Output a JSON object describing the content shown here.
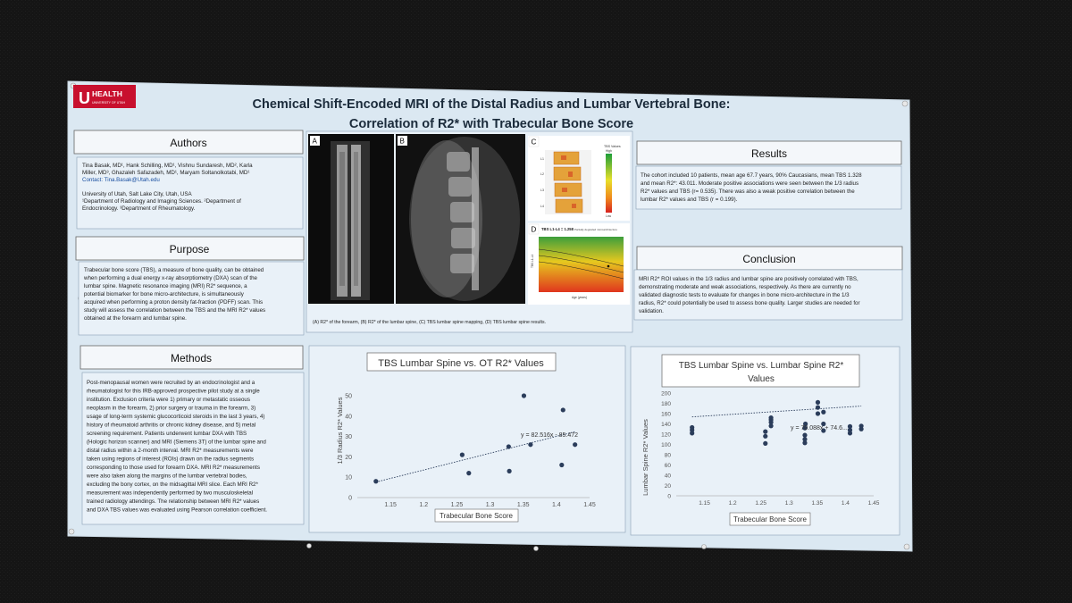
{
  "poster": {
    "logo": {
      "mark": "U",
      "word": "HEALTH",
      "sub": "UNIVERSITY OF UTAH"
    },
    "title_line1": "Chemical Shift-Encoded MRI of the Distal Radius and Lumbar Vertebral Bone:",
    "title_line2": "Correlation of R2* with Trabecular Bone Score",
    "colors": {
      "poster_bg": "#dde9f3",
      "heading_bg": "#f4f7fa",
      "box_bg": "#e9f1f8",
      "logo_red": "#c8102e",
      "dot": "#2b3d5b"
    }
  },
  "authors": {
    "heading": "Authors",
    "lines": [
      "Tina Basak, MD¹, Hank Schilling, MD¹, Vishnu Sundaresh, MD², Karla",
      "Miller, MD³, Ghazaleh Safazadeh, MD¹, Maryam Soltanolkotabi, MD¹",
      "Contact: Tina.Basak@Utah.edu",
      "",
      "University of Utah, Salt Lake City, Utah, USA",
      "¹Department of Radiology and Imaging Sciences. ²Department of",
      "Endocrinology. ³Department of Rheumatology."
    ]
  },
  "purpose": {
    "heading": "Purpose",
    "lines": [
      "Trabecular bone score (TBS), a measure of bone quality, can be obtained",
      "when performing a dual energy x-ray absorptiometry (DXA) scan of the",
      "lumbar spine. Magnetic resonance imaging (MRI) R2* sequence, a",
      "potential biomarker for bone micro-architecture, is simultaneously",
      "acquired when performing a proton density fat-fraction (PDFF) scan. This",
      "study will assess the correlation between the TBS and the MRI R2* values",
      "obtained at the forearm and lumbar spine."
    ]
  },
  "methods": {
    "heading": "Methods",
    "lines": [
      "Post-menopausal women were recruited by an endocrinologist and a",
      "rheumatologist for this IRB-approved prospective pilot study at a single",
      "institution. Exclusion criteria were 1) primary or metastatic osseous",
      "neoplasm in the forearm, 2) prior surgery or trauma in the forearm, 3)",
      "usage of long-term systemic glucocorticoid steroids in the last 3 years, 4)",
      "history of rheumatoid arthritis or chronic kidney disease, and 5) metal",
      "screening requirement. Patients underwent lumbar DXA with TBS",
      "(Hologic horizon scanner) and MRI (Siemens 3T) of the lumbar spine and",
      "distal radius within a 2-month interval. MRI R2* measurements were",
      "taken using regions of interest (ROIs) drawn on the radius segments",
      "corresponding to those used for forearm DXA. MRI R2* measurements",
      "were also taken along the margins of the lumbar vertebral bodies,",
      "excluding the bony cortex, on the midsagittal MRI slice. Each MRI R2*",
      "measurement was independently performed by two musculoskeletal",
      "trained radiology attendings. The relationship between MRI R2* values",
      "and DXA TBS values was evaluated using Pearson correlation coefficient."
    ]
  },
  "images": {
    "labels": [
      "A",
      "B",
      "C",
      "D"
    ],
    "tbs_legend": {
      "title": "TBS Values",
      "high": "High",
      "low": "Low"
    },
    "tbs_header": "TBS L1-L4 = 1.258",
    "tbs_header_note": "Partially degraded microarchitecture",
    "vert_labels": [
      "L1",
      "L2",
      "L3",
      "L4"
    ],
    "plot_ylabel": "TBS L1-L4",
    "plot_xlabel": "Age (years)",
    "caption": "(A) R2* of the forearm, (B) R2* of the lumbar spine, (C) TBS lumbar spine mapping, (D) TBS lumbar spine results."
  },
  "results": {
    "heading": "Results",
    "lines": [
      "The cohort included 10 patients, mean age 67.7 years, 90% Caucasians, mean TBS 1.328",
      "and mean R2*: 43.011. Moderate positive associations were seen between the 1/3 radius",
      "R2* values and TBS (r= 0.535). There was also a weak positive correlation between the",
      "lumbar R2* values and TBS (r = 0.199)."
    ]
  },
  "conclusion": {
    "heading": "Conclusion",
    "lines": [
      "MRI R2* ROI values in the 1/3 radius and lumbar spine are positively correlated with TBS,",
      "demonstrating moderate and weak associations, respectively. As there are currently no",
      "validated diagnostic tests to evaluate for changes in bone micro-architecture in the 1/3",
      "radius, R2* could potentially be used to assess bone quality. Larger studies are needed for",
      "validation."
    ]
  },
  "chart_data": [
    {
      "type": "scatter",
      "title": "TBS Lumbar Spine vs. OT R2* Values",
      "xlabel": "Trabecular Bone Score",
      "ylabel": "1/3 Radius R2* Values",
      "xlim": [
        1.1,
        1.45
      ],
      "ylim": [
        0,
        50
      ],
      "xticks": [
        "1.15",
        "1.2",
        "1.25",
        "1.3",
        "1.35",
        "1.4",
        "1.45"
      ],
      "yticks": [
        "0",
        "10",
        "20",
        "30",
        "40",
        "50"
      ],
      "x": [
        1.128,
        1.258,
        1.268,
        1.328,
        1.329,
        1.351,
        1.361,
        1.408,
        1.41,
        1.428
      ],
      "y": [
        8,
        21,
        12,
        25,
        13,
        50,
        26,
        16,
        43,
        26
      ],
      "trendline_label": "y = 82.516x - 85.472",
      "trendline": {
        "slope": 82.516,
        "intercept": -85.472
      },
      "grid": false
    },
    {
      "type": "scatter",
      "title_lines": [
        "TBS Lumbar Spine vs. Lumbar Spine R2*",
        "Values"
      ],
      "xlabel": "Trabecular Bone Score",
      "ylabel": "Lumbar Spine R2* Values",
      "xlim": [
        1.1,
        1.45
      ],
      "ylim": [
        0,
        200
      ],
      "xticks": [
        "1.15",
        "1.2",
        "1.25",
        "1.3",
        "1.35",
        "1.4",
        "1.45"
      ],
      "yticks": [
        "0",
        "20",
        "40",
        "60",
        "80",
        "100",
        "120",
        "140",
        "160",
        "180",
        "200"
      ],
      "x": [
        1.128,
        1.128,
        1.128,
        1.258,
        1.258,
        1.258,
        1.268,
        1.268,
        1.268,
        1.268,
        1.328,
        1.328,
        1.328,
        1.328,
        1.329,
        1.351,
        1.351,
        1.351,
        1.361,
        1.361,
        1.361,
        1.408,
        1.408,
        1.408,
        1.428,
        1.428
      ],
      "y": [
        122,
        128,
        133,
        102,
        116,
        125,
        136,
        143,
        148,
        152,
        103,
        110,
        118,
        132,
        140,
        160,
        172,
        182,
        127,
        140,
        163,
        122,
        128,
        135,
        130,
        136
      ],
      "trendline_label": "y = 70.088x + 74.6...",
      "trendline": {
        "slope": 70.088,
        "intercept": 74.6
      },
      "grid": false
    }
  ]
}
